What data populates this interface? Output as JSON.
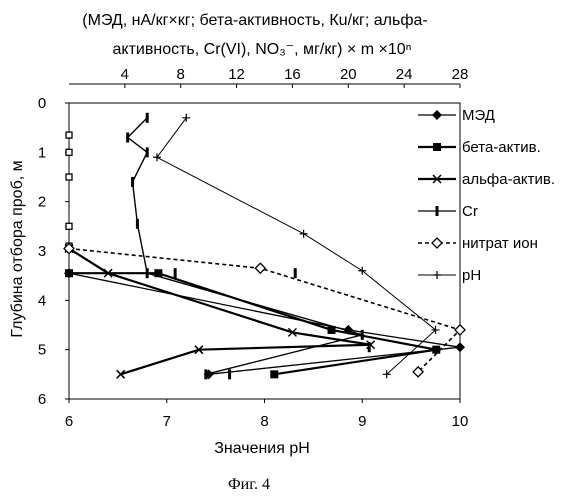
{
  "chart_data": {
    "type": "line",
    "top_title_line1": "(МЭД, нА/кг×кг;  бета-активность,  Кu/кг; альфа-",
    "top_title_line2": "активность, Cr(VI), NO₃⁻,  мг/кг) × m ×10ⁿ",
    "ylabel": "Глубина отбора проб, м",
    "xlabel_bottom": "Значения pH",
    "caption": "Фиг. 4",
    "y_axis": {
      "lim": [
        0,
        6
      ],
      "ticks": [
        "0",
        "1",
        "2",
        "3",
        "4",
        "5",
        "6"
      ],
      "inverted": true
    },
    "x_bottom": {
      "lim": [
        6,
        10
      ],
      "ticks": [
        "6",
        "7",
        "8",
        "9",
        "10"
      ]
    },
    "x_top": {
      "lim": [
        0,
        28
      ],
      "ticks": [
        "4",
        "8",
        "12",
        "16",
        "20",
        "24",
        "28"
      ]
    },
    "series": [
      {
        "name": "МЭД",
        "marker": "diamond",
        "axis": "top",
        "points": [
          [
            0,
            3.45
          ],
          [
            20,
            4.6
          ],
          [
            28,
            4.95
          ],
          [
            10,
            5.5
          ]
        ]
      },
      {
        "name": "бета-актив.",
        "marker": "square",
        "axis": "top",
        "points": [
          [
            0,
            3.45
          ],
          [
            6.4,
            3.45
          ],
          [
            18.8,
            4.6
          ],
          [
            26.3,
            5.0
          ],
          [
            14.7,
            5.5
          ]
        ]
      },
      {
        "name": "альфа-актив.",
        "marker": "x",
        "axis": "top",
        "points": [
          [
            0,
            2.95
          ],
          [
            2.8,
            3.45
          ],
          [
            16,
            4.65
          ],
          [
            21.6,
            4.9
          ],
          [
            9.3,
            5.0
          ],
          [
            3.7,
            5.5
          ]
        ]
      },
      {
        "name": "Cr",
        "marker": "bar",
        "axis": "top",
        "colors": "black",
        "points": [
          [
            0,
            0.65
          ],
          [
            0,
            1.0
          ],
          [
            0,
            1.5
          ],
          [
            0,
            2.5
          ],
          [
            0,
            2.9
          ],
          [
            7.6,
            3.45
          ],
          [
            16.2,
            3.45
          ],
          [
            28,
            4.6
          ],
          [
            21.5,
            4.95
          ],
          [
            11.5,
            5.5
          ]
        ]
      },
      {
        "name": "нитрат ион",
        "marker": "open-diamond",
        "axis": "top",
        "dashed": true,
        "points": [
          [
            0,
            2.95
          ],
          [
            13.7,
            3.35
          ],
          [
            28,
            4.6
          ],
          [
            25,
            5.45
          ]
        ]
      },
      {
        "name": "pH",
        "marker": "plus",
        "axis": "bottom",
        "points": [
          [
            7.2,
            0.3
          ],
          [
            6.9,
            1.1
          ],
          [
            8.4,
            2.65
          ],
          [
            9.0,
            3.4
          ],
          [
            9.75,
            4.6
          ],
          [
            9.25,
            5.5
          ]
        ]
      }
    ],
    "cr_line": {
      "points": [
        [
          6.8,
          0.3
        ],
        [
          6.6,
          0.7
        ],
        [
          6.8,
          1.0
        ],
        [
          6.65,
          1.6
        ],
        [
          6.7,
          2.45
        ],
        [
          6.8,
          3.45
        ],
        [
          9.0,
          4.7
        ],
        [
          7.4,
          5.5
        ]
      ]
    },
    "legend_position": "right"
  }
}
